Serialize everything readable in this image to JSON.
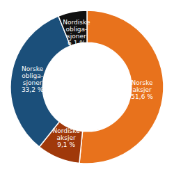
{
  "chart_data": {
    "type": "pie",
    "categories": [
      "Norske\naksjer\n51,6 %",
      "Nordiske\naksjer\n9,1 %",
      "Norske\nobliga-\nsjoner\n33,2 %",
      "Nordiske\nobliga-\nsjoner\n6,1 %"
    ],
    "values": [
      51.6,
      9.1,
      33.2,
      6.1
    ],
    "colors": [
      "#E8721C",
      "#A0390A",
      "#1B4F7A",
      "#111111"
    ]
  }
}
